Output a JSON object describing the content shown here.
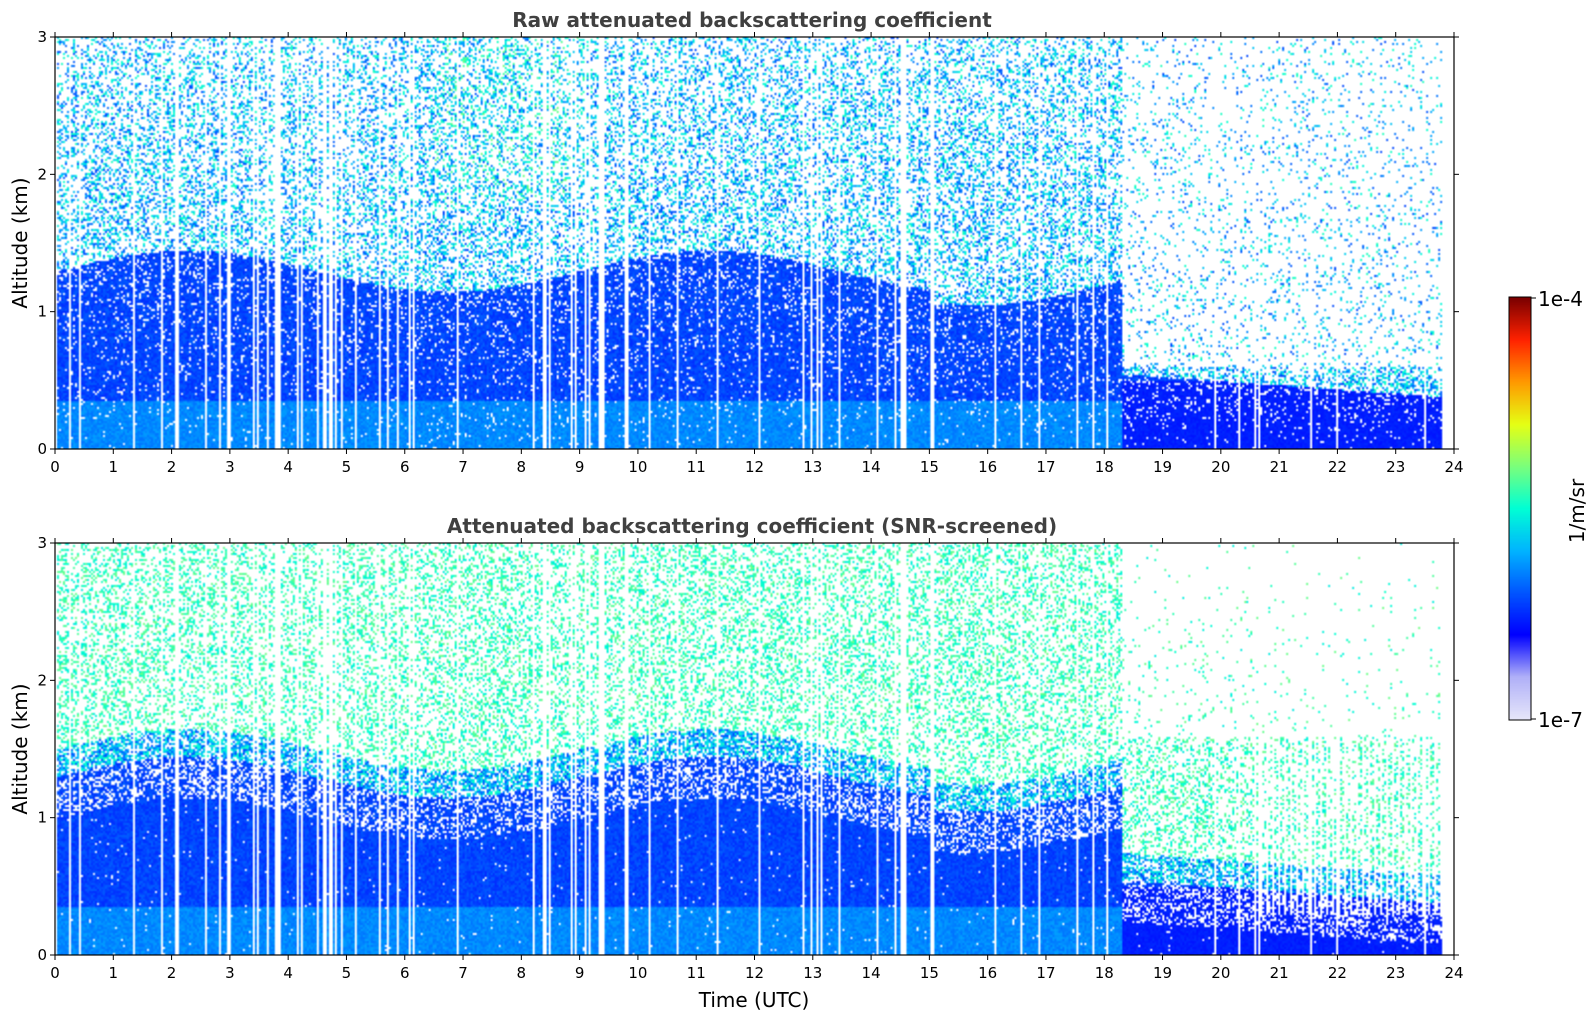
{
  "chart_data": [
    {
      "type": "heatmap",
      "title": "Raw attenuated backscattering coefficient",
      "xlabel": "",
      "ylabel": "Altitude (km)",
      "xlim": [
        0,
        24
      ],
      "ylim": [
        0,
        3
      ],
      "xticks": [
        "0",
        "1",
        "2",
        "3",
        "4",
        "5",
        "6",
        "7",
        "8",
        "9",
        "10",
        "11",
        "12",
        "13",
        "14",
        "15",
        "16",
        "17",
        "18",
        "19",
        "20",
        "21",
        "22",
        "23",
        "24"
      ],
      "yticks": [
        "0",
        "1",
        "2",
        "3"
      ],
      "screened": false,
      "data_end_hour": 23.8
    },
    {
      "type": "heatmap",
      "title": "Attenuated backscattering coefficient (SNR-screened)",
      "xlabel": "Time (UTC)",
      "ylabel": "Altitude (km)",
      "xlim": [
        0,
        24
      ],
      "ylim": [
        0,
        3
      ],
      "xticks": [
        "0",
        "1",
        "2",
        "3",
        "4",
        "5",
        "6",
        "7",
        "8",
        "9",
        "10",
        "11",
        "12",
        "13",
        "14",
        "15",
        "16",
        "17",
        "18",
        "19",
        "20",
        "21",
        "22",
        "23",
        "24"
      ],
      "yticks": [
        "0",
        "1",
        "2",
        "3"
      ],
      "screened": true,
      "data_end_hour": 23.8
    }
  ],
  "colorbar": {
    "label": "1/m/sr",
    "max_label": "1e-4",
    "min_label": "1e-7",
    "scale": "log",
    "range": [
      1e-07,
      0.0001
    ],
    "colors": [
      "#e6e6fa",
      "#b0b0f8",
      "#0000ff",
      "#0055ff",
      "#00b4ff",
      "#00ffd5",
      "#7bff7b",
      "#e6ff14",
      "#ff9900",
      "#ff2200",
      "#7a0000"
    ]
  }
}
